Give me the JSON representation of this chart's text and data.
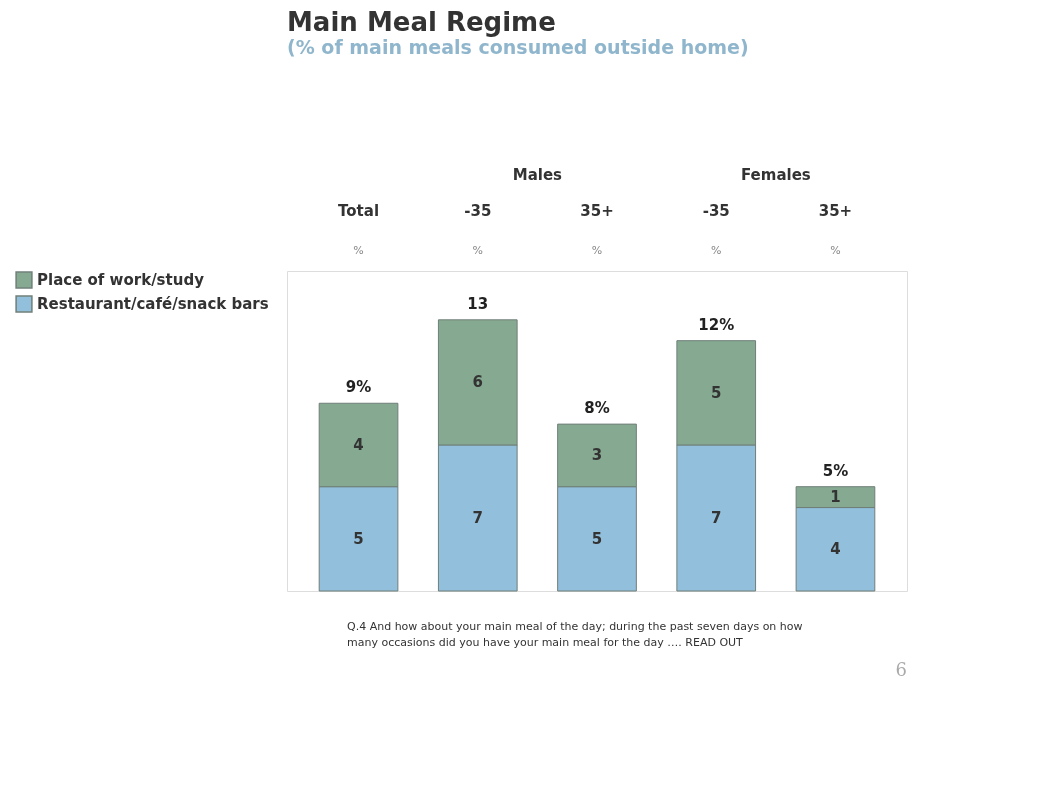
{
  "chart_data": {
    "type": "bar",
    "title": "Main Meal Regime",
    "subtitle": "(% of main meals consumed outside home)",
    "categories": [
      "Total",
      "-35",
      "35+",
      "-35",
      "35+"
    ],
    "stacked": true,
    "data_labels": true,
    "legend": "left",
    "series": [
      {
        "name": "Restaurant/café/snack bars",
        "color": "#92bfdc",
        "values": [
          5,
          7,
          5,
          7,
          4
        ]
      },
      {
        "name": "Place of work/study",
        "color": "#86a992",
        "values": [
          4,
          6,
          3,
          5,
          1
        ]
      }
    ],
    "totals": [
      "9%",
      "13",
      "8%",
      "12%",
      "5%"
    ],
    "annotations": [
      "Males",
      "Females",
      "%",
      "%",
      "%",
      "%",
      "%",
      "Q.4    And how about your main meal of the day; during the past seven days on how many occasions did you have your main meal for the day …. READ OUT",
      "6"
    ]
  }
}
